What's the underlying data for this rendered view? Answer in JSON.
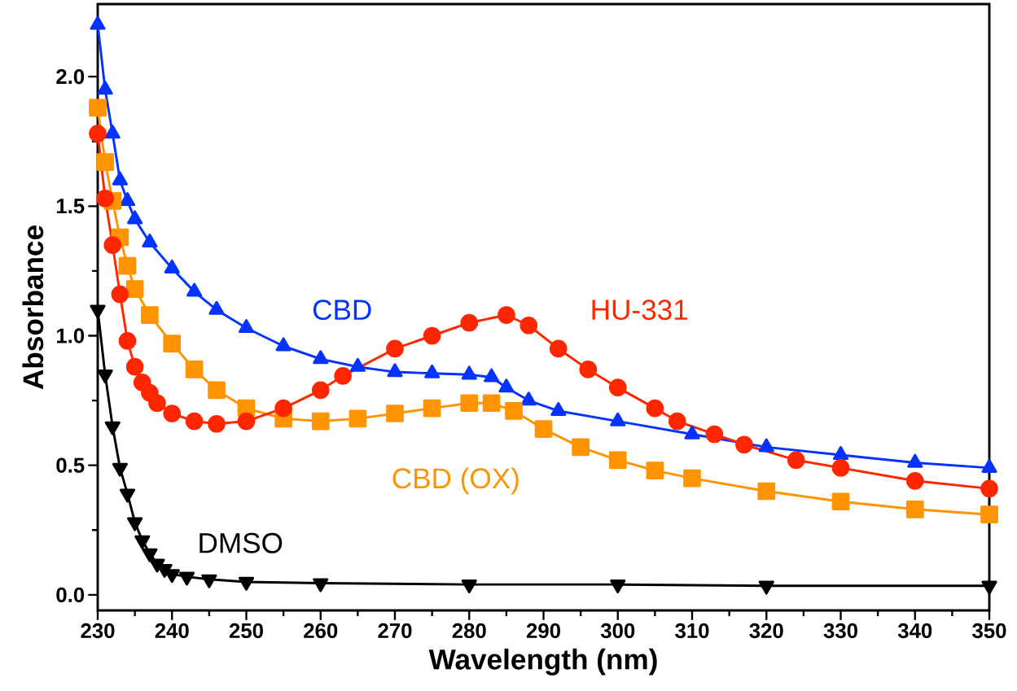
{
  "chart_data": {
    "type": "line",
    "xlabel": "Wavelength (nm)",
    "ylabel": "Absorbance",
    "xlim": [
      230,
      350
    ],
    "ylim": [
      -0.06,
      2.28
    ],
    "xticks": [
      230,
      240,
      250,
      260,
      270,
      280,
      290,
      300,
      310,
      320,
      330,
      340,
      350
    ],
    "yticks": [
      {
        "value": 0,
        "label": "0.0"
      },
      {
        "value": 0.5,
        "label": "0.5"
      },
      {
        "value": 1,
        "label": "1.0"
      },
      {
        "value": 1.5,
        "label": "1.5"
      },
      {
        "value": 2,
        "label": "2.0"
      }
    ],
    "grid": false,
    "line_style": "solid",
    "series": [
      {
        "name": "CBD",
        "color": "#0433ff",
        "marker": "triangle",
        "x": [
          230,
          231,
          232,
          233,
          234,
          235,
          237,
          240,
          243,
          246,
          250,
          255,
          260,
          265,
          270,
          275,
          280,
          283,
          285,
          288,
          292,
          300,
          310,
          320,
          330,
          340,
          350
        ],
        "values": [
          2.2,
          1.95,
          1.78,
          1.6,
          1.52,
          1.45,
          1.36,
          1.26,
          1.17,
          1.1,
          1.03,
          0.96,
          0.91,
          0.88,
          0.86,
          0.855,
          0.85,
          0.84,
          0.8,
          0.75,
          0.71,
          0.67,
          0.62,
          0.57,
          0.54,
          0.51,
          0.49
        ]
      },
      {
        "name": "CBD (OX)",
        "color": "#ff9300",
        "marker": "square",
        "x": [
          230,
          231,
          232,
          233,
          234,
          235,
          237,
          240,
          243,
          246,
          250,
          255,
          260,
          265,
          270,
          275,
          280,
          283,
          286,
          290,
          295,
          300,
          305,
          310,
          320,
          330,
          340,
          350
        ],
        "values": [
          1.88,
          1.67,
          1.52,
          1.38,
          1.27,
          1.18,
          1.08,
          0.97,
          0.87,
          0.79,
          0.72,
          0.68,
          0.67,
          0.68,
          0.7,
          0.72,
          0.74,
          0.74,
          0.71,
          0.64,
          0.57,
          0.52,
          0.48,
          0.45,
          0.4,
          0.36,
          0.33,
          0.31
        ]
      },
      {
        "name": "HU-331",
        "color": "#ff2600",
        "marker": "circle",
        "x": [
          230,
          231,
          232,
          233,
          234,
          235,
          236,
          237,
          238,
          240,
          243,
          246,
          250,
          255,
          260,
          263,
          270,
          275,
          280,
          285,
          288,
          292,
          296,
          300,
          305,
          308,
          313,
          317,
          324,
          330,
          340,
          350
        ],
        "values": [
          1.78,
          1.53,
          1.35,
          1.16,
          0.98,
          0.88,
          0.82,
          0.78,
          0.74,
          0.7,
          0.67,
          0.66,
          0.67,
          0.72,
          0.79,
          0.845,
          0.95,
          1.0,
          1.05,
          1.08,
          1.04,
          0.95,
          0.87,
          0.8,
          0.72,
          0.67,
          0.62,
          0.58,
          0.52,
          0.49,
          0.44,
          0.41
        ]
      },
      {
        "name": "DMSO",
        "color": "#000000",
        "marker": "triangle down",
        "x": [
          230,
          231,
          232,
          233,
          234,
          235,
          236,
          237,
          238,
          239,
          240,
          242,
          245,
          250,
          260,
          280,
          300,
          320,
          350
        ],
        "values": [
          1.1,
          0.85,
          0.65,
          0.49,
          0.39,
          0.28,
          0.21,
          0.16,
          0.12,
          0.1,
          0.08,
          0.07,
          0.06,
          0.05,
          0.045,
          0.04,
          0.04,
          0.035,
          0.035
        ]
      }
    ]
  }
}
